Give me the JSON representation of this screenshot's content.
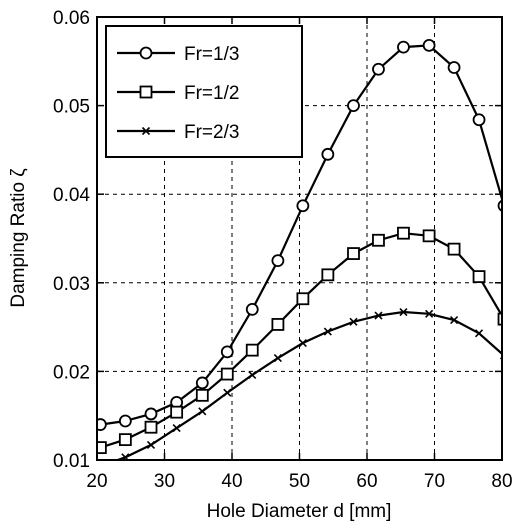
{
  "chart_data": {
    "type": "line",
    "xlabel": "Hole Diameter d [mm]",
    "ylabel": "Damping Ratio ζ",
    "xlim": [
      20,
      80
    ],
    "ylim": [
      0.01,
      0.06
    ],
    "xticks": [
      20,
      30,
      40,
      50,
      60,
      70,
      80
    ],
    "xtick_labels": [
      "20",
      "30",
      "40",
      "50",
      "60",
      "70",
      "80"
    ],
    "yticks": [
      0.01,
      0.02,
      0.03,
      0.04,
      0.05,
      0.06
    ],
    "ytick_labels": [
      "0.01",
      "0.02",
      "0.03",
      "0.04",
      "0.05",
      "0.06"
    ],
    "grid": true,
    "legend_position": "top-left",
    "x": [
      20.5,
      24.2,
      28.0,
      31.8,
      35.6,
      39.3,
      43.0,
      46.8,
      50.5,
      54.2,
      58.0,
      61.7,
      65.4,
      69.2,
      72.9,
      76.6,
      80.3
    ],
    "series": [
      {
        "name": "Fr=1/3",
        "marker": "circle",
        "values": [
          0.014,
          0.0144,
          0.0152,
          0.0165,
          0.0187,
          0.0222,
          0.027,
          0.0325,
          0.0387,
          0.0445,
          0.05,
          0.0541,
          0.0566,
          0.0568,
          0.0543,
          0.0484,
          0.0387
        ]
      },
      {
        "name": "Fr=1/2",
        "marker": "square",
        "values": [
          0.0114,
          0.0123,
          0.0137,
          0.0154,
          0.0173,
          0.0197,
          0.0224,
          0.0253,
          0.0282,
          0.0309,
          0.0333,
          0.0348,
          0.0356,
          0.0353,
          0.0338,
          0.0307,
          0.0259
        ]
      },
      {
        "name": "Fr=2/3",
        "marker": "x",
        "values": [
          0.0093,
          0.0103,
          0.0117,
          0.0136,
          0.0155,
          0.0176,
          0.0196,
          0.0215,
          0.0232,
          0.0245,
          0.0256,
          0.0263,
          0.0267,
          0.0265,
          0.0258,
          0.0243,
          0.0218
        ]
      }
    ]
  }
}
